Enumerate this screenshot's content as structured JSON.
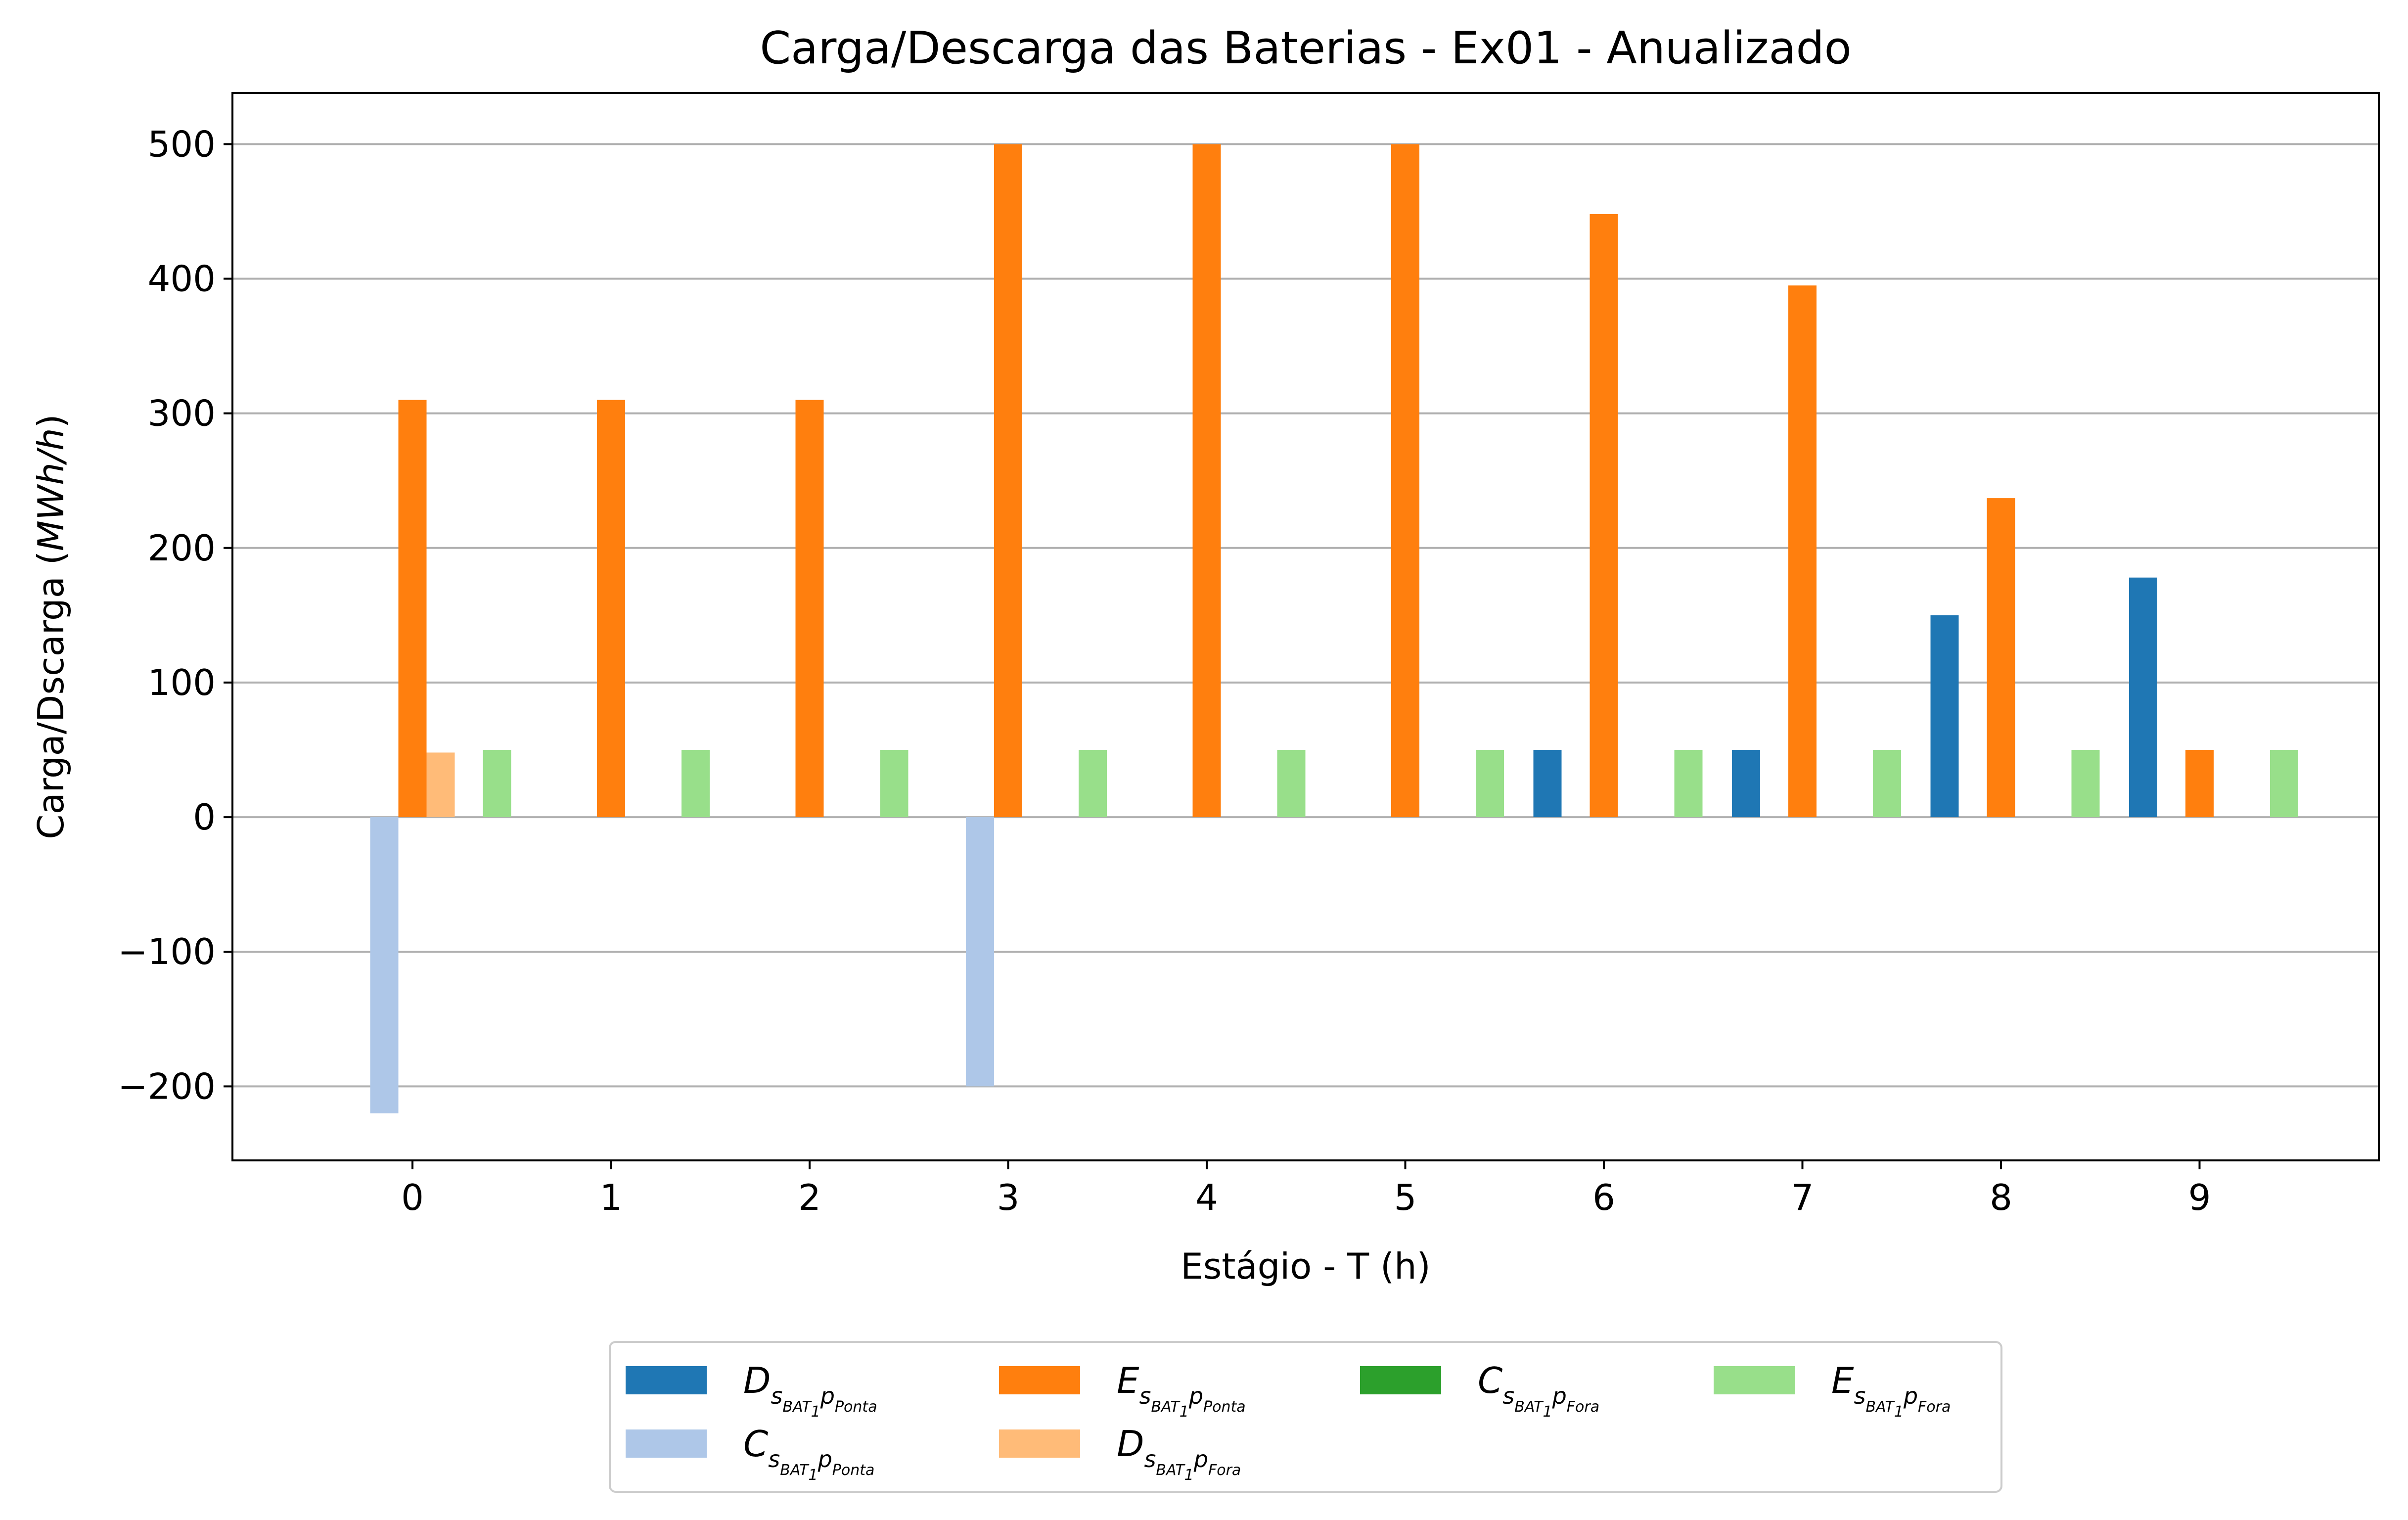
{
  "chart_data": {
    "type": "bar",
    "title": "Carga/Descarga das Baterias - Ex01 - Anualizado",
    "xlabel": "Estágio - T (h)",
    "ylabel_prefix": "Carga/Dscarga (",
    "ylabel_unit": "MWh/h",
    "ylabel_suffix": ")",
    "categories": [
      "0",
      "1",
      "2",
      "3",
      "4",
      "5",
      "6",
      "7",
      "8",
      "9"
    ],
    "ylim": [
      -255,
      538
    ],
    "yticks": [
      -200,
      -100,
      0,
      100,
      200,
      300,
      400,
      500
    ],
    "ytick_labels": [
      "−200",
      "−100",
      "0",
      "100",
      "200",
      "300",
      "400",
      "500"
    ],
    "grid": "y",
    "legend_position": "below",
    "series": [
      {
        "name": "D_{s_{BAT_1}p_{Ponta}}",
        "main": "D",
        "sub": "s",
        "subsub": "BAT",
        "subsubsub": "1",
        "p": "p",
        "psub": "Ponta",
        "color": "#1f77b4",
        "offset": -2,
        "values": [
          0,
          0,
          0,
          0,
          0,
          0,
          50,
          50,
          150,
          178
        ]
      },
      {
        "name": "C_{s_{BAT_1}p_{Ponta}}",
        "main": "C",
        "sub": "s",
        "subsub": "BAT",
        "subsubsub": "1",
        "p": "p",
        "psub": "Ponta",
        "color": "#aec7e8",
        "offset": -1,
        "values": [
          -220,
          0,
          0,
          -200,
          0,
          0,
          0,
          0,
          0,
          0
        ]
      },
      {
        "name": "E_{s_{BAT_1}p_{Ponta}}",
        "main": "E",
        "sub": "s",
        "subsub": "BAT",
        "subsubsub": "1",
        "p": "p",
        "psub": "Ponta",
        "color": "#ff7f0e",
        "offset": 0,
        "values": [
          310,
          310,
          310,
          500,
          500,
          500,
          448,
          395,
          237,
          50
        ]
      },
      {
        "name": "D_{s_{BAT_1}p_{Fora}}",
        "main": "D",
        "sub": "s",
        "subsub": "BAT",
        "subsubsub": "1",
        "p": "p",
        "psub": "Fora",
        "color": "#ffbb78",
        "offset": 1,
        "values": [
          48,
          0,
          0,
          0,
          0,
          0,
          0,
          0,
          0,
          0
        ]
      },
      {
        "name": "C_{s_{BAT_1}p_{Fora}}",
        "main": "C",
        "sub": "s",
        "subsub": "BAT",
        "subsubsub": "1",
        "p": "p",
        "psub": "Fora",
        "color": "#2ca02c",
        "offset": 2,
        "values": [
          0,
          0,
          0,
          0,
          0,
          0,
          0,
          0,
          0,
          0
        ]
      },
      {
        "name": "E_{s_{BAT_1}p_{Fora}}",
        "main": "E",
        "sub": "s",
        "subsub": "BAT",
        "subsubsub": "1",
        "p": "p",
        "psub": "Fora",
        "color": "#98df8a",
        "offset": 3,
        "values": [
          50,
          50,
          50,
          50,
          50,
          50,
          50,
          50,
          50,
          50
        ]
      }
    ],
    "legend_order": [
      0,
      1,
      2,
      3,
      4,
      5
    ]
  }
}
